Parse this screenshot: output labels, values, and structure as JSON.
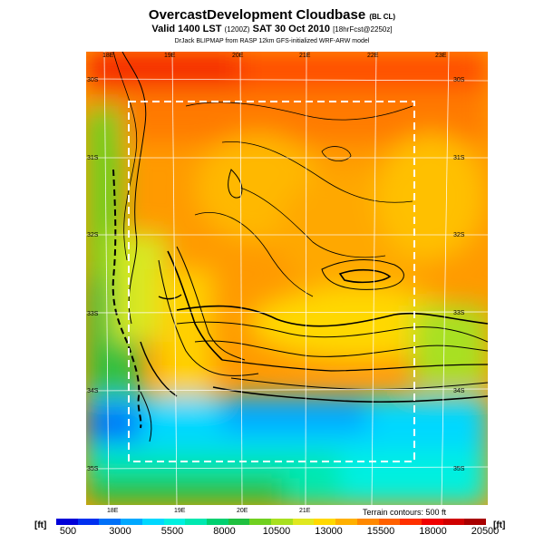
{
  "header": {
    "title": "OvercastDevelopment Cloudbase",
    "title_suffix": "(BL CL)",
    "valid_line": "Valid 1400 LST",
    "valid_utc": "(1200Z)",
    "valid_date": "SAT 30 Oct 2010",
    "valid_forecast": "[18hrFcst@2250z]",
    "credit": "DrJack BLIPMAP from RASP 12km GFS-initialized WRF-ARW model"
  },
  "map": {
    "lon_labels_top": [
      "18E",
      "19E",
      "20E",
      "21E",
      "22E",
      "23E"
    ],
    "lon_labels_bottom": [
      "18E",
      "19E",
      "20E",
      "21E"
    ],
    "lat_labels_left": [
      "30S",
      "31S",
      "32S",
      "33S",
      "34S",
      "35S"
    ],
    "lat_labels_right": [
      "30S",
      "31S",
      "32S",
      "33S",
      "34S",
      "35S"
    ],
    "terrain_note": "Terrain contours: 500 ft"
  },
  "colorbar": {
    "unit": "[ft]",
    "labels": [
      "500",
      "3000",
      "5500",
      "8000",
      "10500",
      "13000",
      "15500",
      "18000",
      "20500"
    ],
    "colors": [
      "#0000d8",
      "#0030f0",
      "#0070f8",
      "#00a8ff",
      "#00d8ff",
      "#00f0e0",
      "#00e8b0",
      "#00d070",
      "#20c040",
      "#70d020",
      "#a8e020",
      "#e0e820",
      "#ffd800",
      "#ffb000",
      "#ff8800",
      "#ff6000",
      "#ff3000",
      "#f00000",
      "#d00000",
      "#a80000"
    ]
  }
}
